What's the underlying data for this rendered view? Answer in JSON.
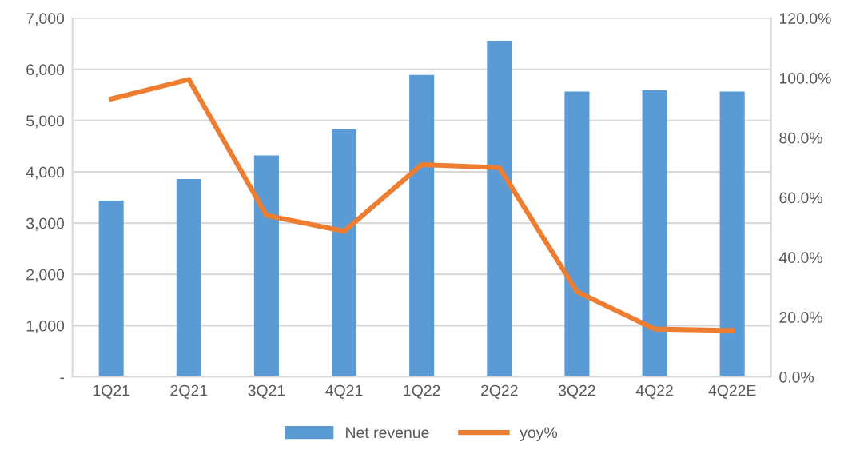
{
  "chart_data": {
    "type": "bar",
    "categories": [
      "1Q21",
      "2Q21",
      "3Q21",
      "4Q21",
      "1Q22",
      "2Q22",
      "3Q22",
      "4Q22",
      "4Q22E"
    ],
    "series": [
      {
        "name": "Net revenue",
        "color": "#5b9bd5",
        "values": [
          3440,
          3860,
          4320,
          4830,
          5890,
          6560,
          5570,
          5590,
          5570
        ]
      },
      {
        "name": "yoy%",
        "type": "line",
        "axis": "y2",
        "color": "#ed7d31",
        "marker": "none",
        "line_style": "solid",
        "values": [
          93,
          99.5,
          54,
          48.7,
          71,
          70,
          28.5,
          16,
          15.5
        ]
      }
    ],
    "ylim": [
      0,
      7000
    ],
    "yticks": [
      {
        "value": 0,
        "label": "-"
      },
      {
        "value": 1000,
        "label": "1,000"
      },
      {
        "value": 2000,
        "label": "2,000"
      },
      {
        "value": 3000,
        "label": "3,000"
      },
      {
        "value": 4000,
        "label": "4,000"
      },
      {
        "value": 5000,
        "label": "5,000"
      },
      {
        "value": 6000,
        "label": "6,000"
      },
      {
        "value": 7000,
        "label": "7,000"
      }
    ],
    "y2lim": [
      0,
      120
    ],
    "y2ticks": [
      {
        "value": 0,
        "label": "0.0%"
      },
      {
        "value": 20,
        "label": "20.0%"
      },
      {
        "value": 40,
        "label": "40.0%"
      },
      {
        "value": 60,
        "label": "60.0%"
      },
      {
        "value": 80,
        "label": "80.0%"
      },
      {
        "value": 100,
        "label": "100.0%"
      },
      {
        "value": 120,
        "label": "120.0%"
      }
    ],
    "grid": "y",
    "legend": "bottom"
  }
}
